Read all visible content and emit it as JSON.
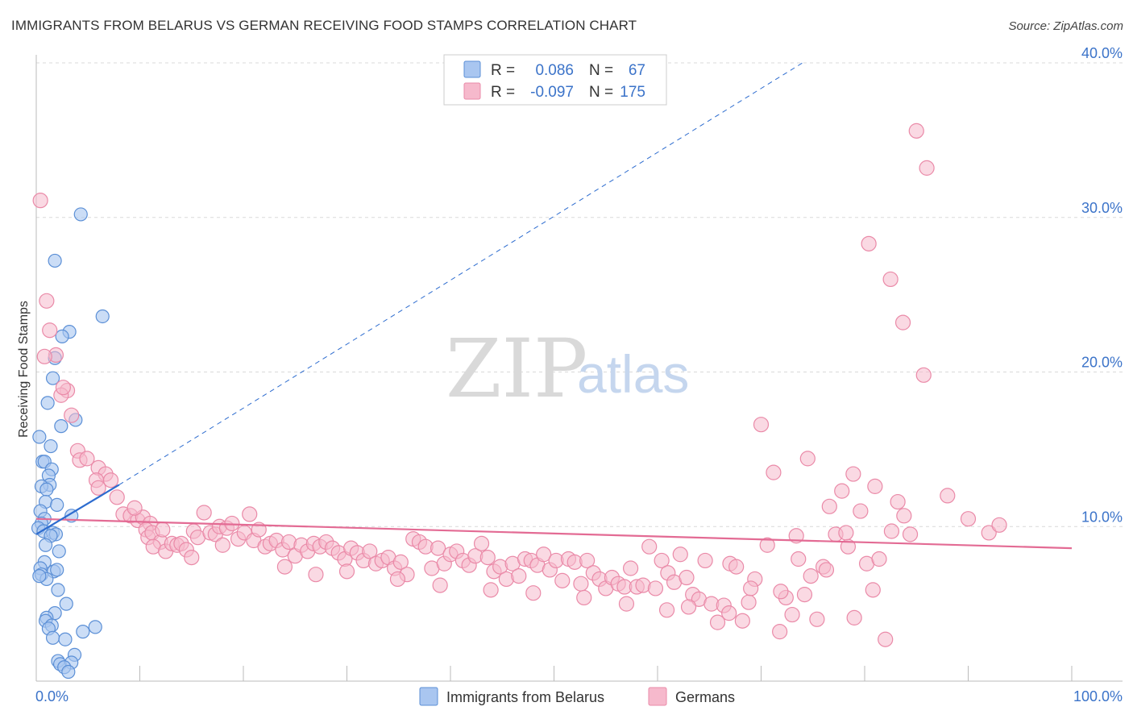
{
  "title": "IMMIGRANTS FROM BELARUS VS GERMAN RECEIVING FOOD STAMPS CORRELATION CHART",
  "source": "Source: ZipAtlas.com",
  "watermark": {
    "zip": "ZIP",
    "atlas": "atlas"
  },
  "colors": {
    "belarus_fill": "#a9c6f0",
    "belarus_stroke": "#5b8fd6",
    "belarus_line": "#2d6ccf",
    "german_fill": "#f6b9cc",
    "german_stroke": "#ea8aa8",
    "german_line": "#e36b94",
    "grid": "#d9d9d9",
    "axis_label": "#3b73c9"
  },
  "legend": {
    "rows": [
      {
        "r_label": "R =",
        "r_value": "0.086",
        "n_label": "N =",
        "n_value": "67"
      },
      {
        "r_label": "R =",
        "r_value": "-0.097",
        "n_label": "N =",
        "n_value": "175"
      }
    ]
  },
  "chart_data": {
    "type": "scatter",
    "title": "IMMIGRANTS FROM BELARUS VS GERMAN RECEIVING FOOD STAMPS CORRELATION CHART",
    "xlabel": "",
    "ylabel": "Receiving Food Stamps",
    "xlim": [
      0,
      100
    ],
    "ylim": [
      0,
      40
    ],
    "x_tick_labels": [
      "0.0%",
      "100.0%"
    ],
    "y_ticks": [
      10,
      20,
      30,
      40
    ],
    "y_tick_labels": [
      "10.0%",
      "20.0%",
      "30.0%",
      "40.0%"
    ],
    "grid": true,
    "series": [
      {
        "name": "Immigrants from Belarus",
        "R": 0.086,
        "N": 67,
        "trend_solid": {
          "x": [
            0,
            8.0
          ],
          "y": [
            9.5,
            12.7
          ]
        },
        "trend_dashed": {
          "x": [
            8.0,
            74.0
          ],
          "y": [
            12.7,
            40.0
          ]
        },
        "points": [
          [
            4.3,
            30.2
          ],
          [
            1.8,
            27.2
          ],
          [
            6.4,
            23.6
          ],
          [
            3.2,
            22.6
          ],
          [
            2.5,
            22.3
          ],
          [
            1.8,
            20.9
          ],
          [
            1.6,
            19.6
          ],
          [
            1.1,
            18.0
          ],
          [
            3.8,
            16.9
          ],
          [
            2.4,
            16.5
          ],
          [
            0.3,
            15.8
          ],
          [
            1.4,
            15.2
          ],
          [
            0.6,
            14.2
          ],
          [
            0.8,
            14.2
          ],
          [
            1.5,
            13.7
          ],
          [
            1.2,
            13.3
          ],
          [
            1.3,
            12.7
          ],
          [
            0.5,
            12.6
          ],
          [
            1.0,
            12.4
          ],
          [
            0.9,
            11.6
          ],
          [
            2.0,
            11.4
          ],
          [
            0.4,
            11.0
          ],
          [
            3.4,
            10.7
          ],
          [
            0.8,
            10.5
          ],
          [
            0.5,
            10.2
          ],
          [
            0.2,
            9.9
          ],
          [
            0.7,
            9.7
          ],
          [
            1.6,
            9.6
          ],
          [
            1.9,
            9.5
          ],
          [
            1.4,
            9.4
          ],
          [
            0.9,
            8.8
          ],
          [
            2.2,
            8.4
          ],
          [
            0.8,
            7.7
          ],
          [
            0.4,
            7.3
          ],
          [
            1.7,
            7.1
          ],
          [
            2.0,
            7.2
          ],
          [
            0.5,
            6.9
          ],
          [
            1.0,
            6.6
          ],
          [
            0.3,
            6.8
          ],
          [
            2.1,
            5.9
          ],
          [
            2.9,
            5.0
          ],
          [
            1.8,
            4.4
          ],
          [
            1.0,
            4.1
          ],
          [
            0.9,
            3.9
          ],
          [
            1.5,
            3.6
          ],
          [
            1.2,
            3.4
          ],
          [
            5.7,
            3.5
          ],
          [
            4.5,
            3.2
          ],
          [
            1.6,
            2.8
          ],
          [
            2.8,
            2.7
          ],
          [
            3.7,
            1.7
          ],
          [
            2.1,
            1.3
          ],
          [
            2.3,
            1.1
          ],
          [
            3.4,
            1.2
          ],
          [
            2.7,
            0.9
          ],
          [
            3.1,
            0.6
          ]
        ]
      },
      {
        "name": "Germans",
        "R": -0.097,
        "N": 175,
        "trend_solid": {
          "x": [
            0,
            100
          ],
          "y": [
            10.5,
            8.6
          ]
        },
        "points": [
          [
            0.4,
            31.1
          ],
          [
            1.0,
            24.6
          ],
          [
            1.3,
            22.7
          ],
          [
            1.9,
            21.1
          ],
          [
            3.0,
            18.8
          ],
          [
            2.4,
            18.5
          ],
          [
            3.4,
            17.2
          ],
          [
            4.0,
            14.9
          ],
          [
            4.2,
            14.3
          ],
          [
            4.9,
            14.4
          ],
          [
            6.0,
            13.8
          ],
          [
            6.7,
            13.4
          ],
          [
            5.8,
            13.0
          ],
          [
            7.2,
            13.0
          ],
          [
            7.8,
            11.9
          ],
          [
            8.4,
            10.8
          ],
          [
            9.1,
            10.7
          ],
          [
            9.8,
            10.4
          ],
          [
            10.3,
            10.6
          ],
          [
            11.0,
            10.2
          ],
          [
            10.6,
            9.8
          ],
          [
            10.8,
            9.3
          ],
          [
            11.2,
            9.6
          ],
          [
            12.0,
            9.0
          ],
          [
            11.3,
            8.7
          ],
          [
            12.5,
            8.4
          ],
          [
            13.1,
            8.9
          ],
          [
            13.6,
            8.8
          ],
          [
            14.0,
            8.9
          ],
          [
            14.5,
            8.5
          ],
          [
            15.2,
            9.7
          ],
          [
            15.6,
            9.3
          ],
          [
            16.2,
            10.9
          ],
          [
            16.8,
            9.6
          ],
          [
            17.3,
            9.5
          ],
          [
            17.7,
            10.0
          ],
          [
            18.4,
            9.9
          ],
          [
            18.9,
            10.2
          ],
          [
            19.5,
            9.2
          ],
          [
            20.1,
            9.6
          ],
          [
            20.6,
            10.8
          ],
          [
            21.0,
            9.1
          ],
          [
            21.5,
            9.8
          ],
          [
            22.1,
            8.7
          ],
          [
            22.6,
            8.9
          ],
          [
            23.2,
            9.1
          ],
          [
            23.8,
            8.5
          ],
          [
            24.4,
            9.0
          ],
          [
            25.0,
            8.1
          ],
          [
            25.6,
            8.8
          ],
          [
            26.2,
            8.4
          ],
          [
            26.8,
            8.9
          ],
          [
            27.4,
            8.7
          ],
          [
            28.0,
            9.0
          ],
          [
            28.6,
            8.6
          ],
          [
            29.2,
            8.3
          ],
          [
            29.8,
            7.9
          ],
          [
            30.4,
            8.6
          ],
          [
            31.0,
            8.3
          ],
          [
            31.6,
            7.8
          ],
          [
            32.2,
            8.4
          ],
          [
            32.8,
            7.6
          ],
          [
            33.4,
            7.8
          ],
          [
            34.0,
            8.0
          ],
          [
            34.6,
            7.3
          ],
          [
            35.2,
            7.7
          ],
          [
            35.8,
            6.9
          ],
          [
            36.4,
            9.2
          ],
          [
            37.0,
            9.0
          ],
          [
            37.6,
            8.7
          ],
          [
            38.2,
            7.3
          ],
          [
            38.8,
            8.6
          ],
          [
            39.4,
            7.6
          ],
          [
            40.0,
            8.2
          ],
          [
            40.6,
            8.4
          ],
          [
            41.2,
            7.8
          ],
          [
            41.8,
            7.5
          ],
          [
            42.4,
            8.1
          ],
          [
            43.0,
            8.9
          ],
          [
            43.6,
            8.0
          ],
          [
            44.2,
            7.1
          ],
          [
            44.8,
            7.4
          ],
          [
            45.4,
            6.6
          ],
          [
            46.0,
            7.6
          ],
          [
            46.6,
            6.8
          ],
          [
            47.2,
            7.9
          ],
          [
            47.8,
            7.8
          ],
          [
            48.4,
            7.5
          ],
          [
            49.0,
            8.2
          ],
          [
            49.6,
            7.2
          ],
          [
            50.2,
            7.8
          ],
          [
            50.8,
            6.5
          ],
          [
            51.4,
            7.9
          ],
          [
            52.0,
            7.7
          ],
          [
            52.6,
            6.3
          ],
          [
            53.2,
            7.8
          ],
          [
            53.8,
            7.0
          ],
          [
            54.4,
            6.6
          ],
          [
            55.0,
            6.0
          ],
          [
            55.6,
            6.7
          ],
          [
            56.2,
            6.3
          ],
          [
            56.8,
            6.1
          ],
          [
            57.4,
            7.3
          ],
          [
            58.0,
            6.1
          ],
          [
            58.6,
            6.2
          ],
          [
            59.2,
            8.7
          ],
          [
            59.8,
            6.0
          ],
          [
            60.4,
            7.8
          ],
          [
            61.0,
            7.0
          ],
          [
            61.6,
            6.4
          ],
          [
            62.2,
            8.2
          ],
          [
            62.8,
            6.7
          ],
          [
            63.4,
            5.6
          ],
          [
            64.0,
            5.3
          ],
          [
            64.6,
            7.8
          ],
          [
            65.2,
            5.0
          ],
          [
            65.8,
            3.8
          ],
          [
            66.4,
            4.9
          ],
          [
            67.0,
            7.6
          ],
          [
            67.6,
            7.4
          ],
          [
            68.2,
            3.9
          ],
          [
            68.8,
            5.1
          ],
          [
            69.4,
            6.6
          ],
          [
            70.0,
            16.6
          ],
          [
            70.6,
            8.8
          ],
          [
            71.2,
            13.5
          ],
          [
            71.8,
            3.2
          ],
          [
            72.4,
            5.4
          ],
          [
            73.0,
            4.3
          ],
          [
            73.6,
            7.9
          ],
          [
            74.2,
            5.6
          ],
          [
            74.8,
            6.8
          ],
          [
            75.4,
            4.0
          ],
          [
            76.0,
            7.4
          ],
          [
            76.6,
            11.3
          ],
          [
            77.2,
            9.5
          ],
          [
            77.8,
            12.3
          ],
          [
            78.4,
            8.7
          ],
          [
            79.0,
            4.1
          ],
          [
            79.6,
            11.0
          ],
          [
            80.2,
            7.6
          ],
          [
            80.8,
            5.9
          ],
          [
            81.4,
            7.9
          ],
          [
            82.0,
            2.7
          ],
          [
            82.6,
            9.7
          ],
          [
            83.2,
            11.6
          ],
          [
            83.8,
            10.7
          ],
          [
            84.4,
            9.5
          ],
          [
            85.0,
            35.6
          ],
          [
            86.0,
            33.2
          ],
          [
            80.4,
            28.3
          ],
          [
            82.5,
            26.0
          ],
          [
            83.7,
            23.2
          ],
          [
            85.7,
            19.8
          ],
          [
            88.0,
            12.0
          ],
          [
            90.0,
            10.5
          ],
          [
            92.0,
            9.6
          ],
          [
            93.0,
            10.1
          ],
          [
            74.5,
            14.4
          ],
          [
            78.9,
            13.4
          ],
          [
            0.8,
            21.0
          ],
          [
            2.6,
            19.0
          ],
          [
            6.0,
            12.5
          ],
          [
            9.5,
            11.2
          ],
          [
            12.2,
            9.8
          ],
          [
            15.0,
            8.0
          ],
          [
            18.0,
            8.8
          ],
          [
            24.0,
            7.4
          ],
          [
            27.0,
            6.9
          ],
          [
            30.0,
            7.1
          ],
          [
            34.9,
            6.6
          ],
          [
            39.0,
            6.2
          ],
          [
            43.9,
            5.9
          ],
          [
            48.0,
            5.7
          ],
          [
            52.9,
            5.4
          ],
          [
            57.0,
            5.0
          ],
          [
            60.9,
            4.6
          ],
          [
            63.0,
            4.8
          ],
          [
            66.9,
            4.4
          ],
          [
            69.0,
            6.0
          ],
          [
            71.9,
            5.8
          ],
          [
            73.4,
            9.4
          ],
          [
            76.3,
            7.2
          ],
          [
            78.2,
            9.6
          ],
          [
            81.0,
            12.6
          ]
        ]
      }
    ]
  },
  "bottom_legend": [
    {
      "label": "Immigrants from Belarus"
    },
    {
      "label": "Germans"
    }
  ]
}
